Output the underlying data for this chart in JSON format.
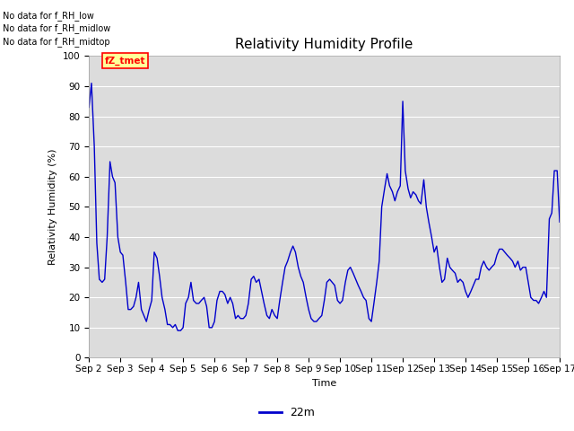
{
  "title": "Relativity Humidity Profile",
  "xlabel": "Time",
  "ylabel": "Relativity Humidity (%)",
  "ylim": [
    0,
    100
  ],
  "yticks": [
    0,
    10,
    20,
    30,
    40,
    50,
    60,
    70,
    80,
    90,
    100
  ],
  "line_color": "#0000cc",
  "line_label": "22m",
  "legend_label": "22m",
  "bg_color": "#dcdcdc",
  "annotations": [
    "No data for f_RH_low",
    "No data for f_RH_midlow",
    "No data for f_RH_midtop"
  ],
  "fz_label": "fZ_tmet",
  "x_tick_labels": [
    "Sep 2",
    "Sep 3",
    "Sep 4",
    "Sep 5",
    "Sep 6",
    "Sep 7",
    "Sep 8",
    "Sep 9",
    "Sep 10",
    "Sep 11",
    "Sep 12",
    "Sep 13",
    "Sep 14",
    "Sep 15",
    "Sep 16",
    "Sep 17"
  ],
  "data_x": [
    0.0,
    0.08,
    0.17,
    0.25,
    0.33,
    0.42,
    0.5,
    0.58,
    0.67,
    0.75,
    0.83,
    0.92,
    1.0,
    1.08,
    1.17,
    1.25,
    1.33,
    1.42,
    1.5,
    1.58,
    1.67,
    1.75,
    1.83,
    1.92,
    2.0,
    2.08,
    2.17,
    2.25,
    2.33,
    2.42,
    2.5,
    2.58,
    2.67,
    2.75,
    2.83,
    2.92,
    3.0,
    3.08,
    3.17,
    3.25,
    3.33,
    3.42,
    3.5,
    3.58,
    3.67,
    3.75,
    3.83,
    3.92,
    4.0,
    4.08,
    4.17,
    4.25,
    4.33,
    4.42,
    4.5,
    4.58,
    4.67,
    4.75,
    4.83,
    4.92,
    5.0,
    5.08,
    5.17,
    5.25,
    5.33,
    5.42,
    5.5,
    5.58,
    5.67,
    5.75,
    5.83,
    5.92,
    6.0,
    6.08,
    6.17,
    6.25,
    6.33,
    6.42,
    6.5,
    6.58,
    6.67,
    6.75,
    6.83,
    6.92,
    7.0,
    7.08,
    7.17,
    7.25,
    7.33,
    7.42,
    7.5,
    7.58,
    7.67,
    7.75,
    7.83,
    7.92,
    8.0,
    8.08,
    8.17,
    8.25,
    8.33,
    8.42,
    8.5,
    8.58,
    8.67,
    8.75,
    8.83,
    8.92,
    9.0,
    9.08,
    9.17,
    9.25,
    9.33,
    9.42,
    9.5,
    9.58,
    9.67,
    9.75,
    9.83,
    9.92,
    10.0,
    10.08,
    10.17,
    10.25,
    10.33,
    10.42,
    10.5,
    10.58,
    10.67,
    10.75,
    10.83,
    10.92,
    11.0,
    11.08,
    11.17,
    11.25,
    11.33,
    11.42,
    11.5,
    11.58,
    11.67,
    11.75,
    11.83,
    11.92,
    12.0,
    12.08,
    12.17,
    12.25,
    12.33,
    12.42,
    12.5,
    12.58,
    12.67,
    12.75,
    12.83,
    12.92,
    13.0,
    13.08,
    13.17,
    13.25,
    13.33,
    13.42,
    13.5,
    13.58,
    13.67,
    13.75,
    13.83,
    13.92,
    14.0,
    14.08,
    14.17,
    14.25,
    14.33,
    14.42,
    14.5,
    14.58,
    14.67,
    14.75,
    14.83,
    14.92,
    15.0
  ],
  "data_y": [
    83,
    91,
    70,
    38,
    26,
    25,
    26,
    40,
    65,
    60,
    58,
    40,
    35,
    34,
    25,
    16,
    16,
    17,
    20,
    25,
    16,
    14,
    12,
    16,
    19,
    35,
    33,
    27,
    20,
    16,
    11,
    11,
    10,
    11,
    9,
    9,
    10,
    18,
    20,
    25,
    19,
    18,
    18,
    19,
    20,
    17,
    10,
    10,
    12,
    19,
    22,
    22,
    21,
    18,
    20,
    18,
    13,
    14,
    13,
    13,
    14,
    18,
    26,
    27,
    25,
    26,
    22,
    18,
    14,
    13,
    16,
    14,
    13,
    19,
    25,
    30,
    32,
    35,
    37,
    35,
    30,
    27,
    25,
    20,
    16,
    13,
    12,
    12,
    13,
    14,
    19,
    25,
    26,
    25,
    24,
    19,
    18,
    19,
    25,
    29,
    30,
    28,
    26,
    24,
    22,
    20,
    19,
    13,
    12,
    18,
    25,
    32,
    50,
    56,
    61,
    57,
    55,
    52,
    55,
    57,
    85,
    62,
    56,
    53,
    55,
    54,
    52,
    51,
    59,
    50,
    45,
    40,
    35,
    37,
    30,
    25,
    26,
    33,
    30,
    29,
    28,
    25,
    26,
    25,
    22,
    20,
    22,
    24,
    26,
    26,
    30,
    32,
    30,
    29,
    30,
    31,
    34,
    36,
    36,
    35,
    34,
    33,
    32,
    30,
    32,
    29,
    30,
    30,
    25,
    20,
    19,
    19,
    18,
    20,
    22,
    20,
    46,
    48,
    62,
    62,
    45
  ]
}
